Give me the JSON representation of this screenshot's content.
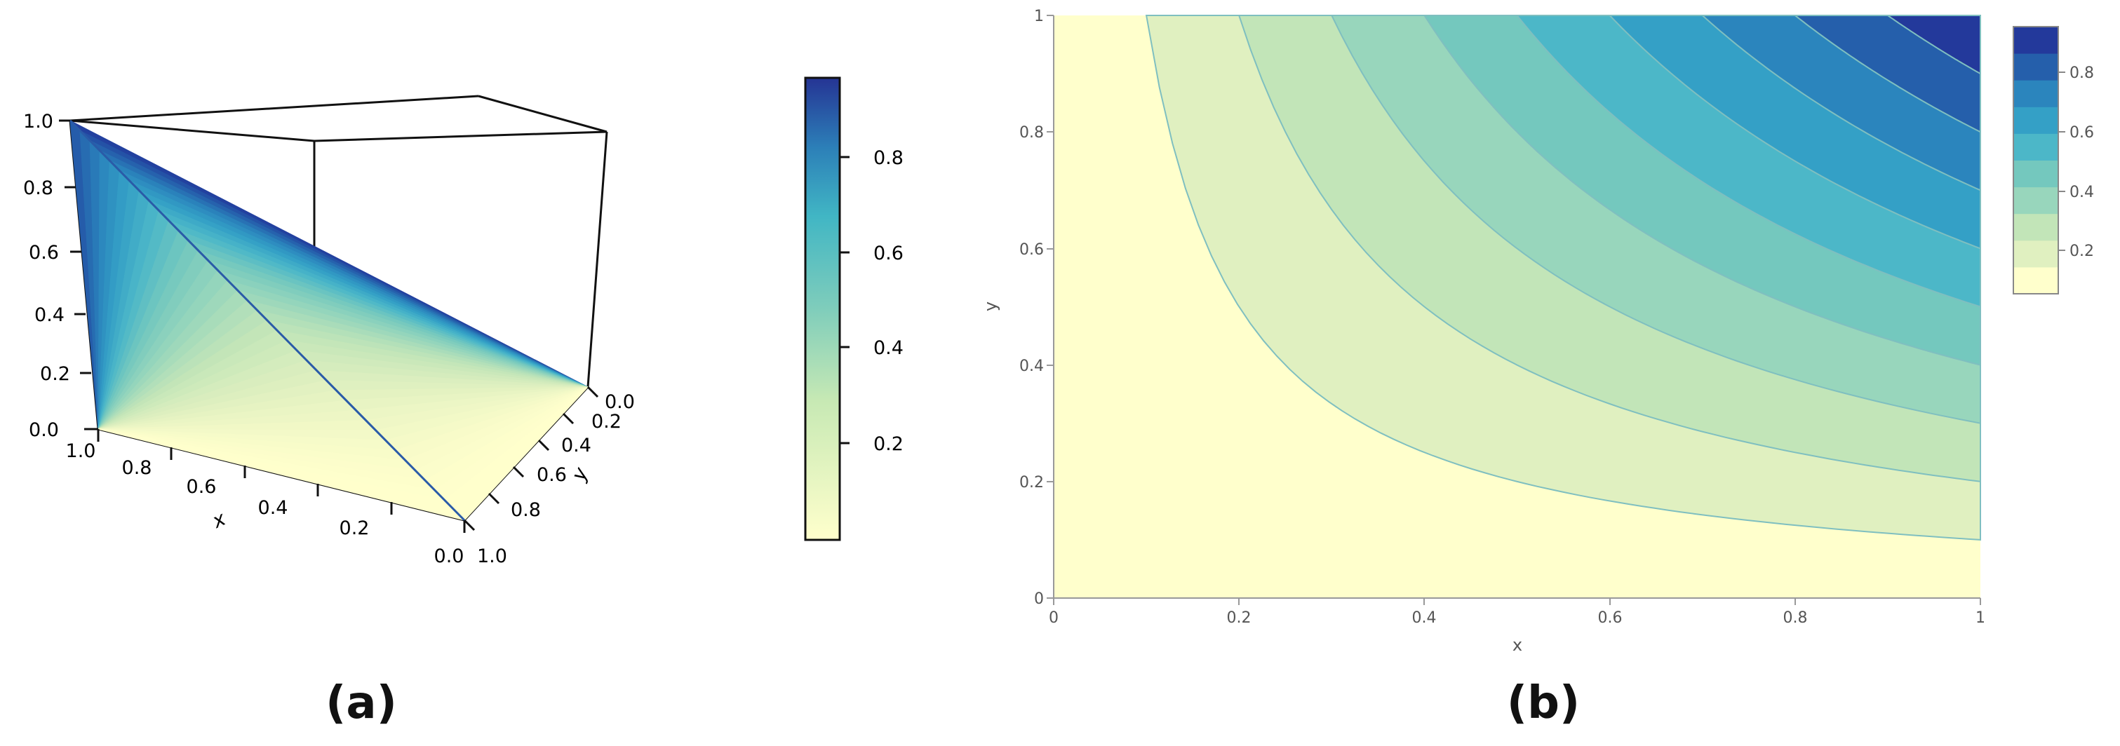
{
  "panels": {
    "a": {
      "caption": "(a)"
    },
    "b": {
      "caption": "(b)"
    }
  },
  "colors": {
    "scale": [
      "#ffffcc",
      "#e0f0c0",
      "#c2e5b8",
      "#98d6bc",
      "#74c8be",
      "#4cb7c8",
      "#34a0c6",
      "#2b85bd",
      "#255fab",
      "#23399b"
    ],
    "axis": "#555555",
    "contour_line": "#7fbfc0"
  },
  "chart_data": [
    {
      "panel": "a",
      "type": "surface",
      "x_ticks": [
        "1.0",
        "0.8",
        "0.6",
        "0.4",
        "0.2",
        "0.0"
      ],
      "y_ticks": [
        "0.0",
        "0.2",
        "0.4",
        "0.6",
        "0.8",
        "1.0"
      ],
      "z_ticks": [
        "1.0",
        "0.8",
        "0.6",
        "0.4",
        "0.2",
        "0.0"
      ],
      "xlabel": "x",
      "ylabel": "y",
      "xlim": [
        0,
        1
      ],
      "ylim": [
        0,
        1
      ],
      "zlim": [
        0,
        1
      ],
      "surface": {
        "corner_max": {
          "x": 1,
          "y": 1,
          "z": 1
        },
        "corner_min": {
          "x": 0,
          "y": 0,
          "z": 0
        }
      },
      "floor_contours": true,
      "colorbar": {
        "ticks": [
          "0.2",
          "0.4",
          "0.6",
          "0.8"
        ],
        "range": [
          0.01,
          0.97
        ]
      }
    },
    {
      "panel": "b",
      "type": "contour",
      "x_ticks": [
        "0",
        "0.2",
        "0.4",
        "0.6",
        "0.8",
        "1"
      ],
      "y_ticks": [
        "0",
        "0.2",
        "0.4",
        "0.6",
        "0.8",
        "1"
      ],
      "xlabel": "x",
      "ylabel": "y",
      "xlim": [
        0,
        1
      ],
      "ylim": [
        0,
        1
      ],
      "levels": [
        0.1,
        0.2,
        0.3,
        0.4,
        0.5,
        0.6,
        0.7,
        0.8,
        0.9
      ],
      "grid": false,
      "colorbar": {
        "ticks": [
          "0.2",
          "0.4",
          "0.6",
          "0.8"
        ],
        "range": [
          0,
          1
        ]
      }
    }
  ]
}
